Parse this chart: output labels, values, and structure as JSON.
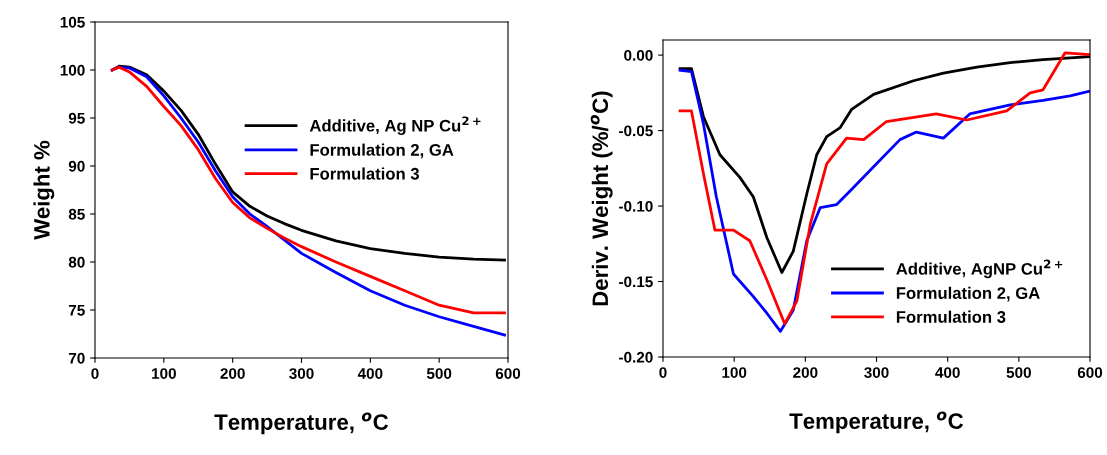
{
  "chart_data": [
    {
      "type": "line",
      "xlabel": "Temperature, $^{o}$C",
      "ylabel": "Weight %",
      "xlim": [
        0,
        600
      ],
      "xticks": [
        0,
        100,
        200,
        300,
        400,
        500,
        600
      ],
      "ylim": [
        70,
        105
      ],
      "yticks": [
        70,
        75,
        80,
        85,
        90,
        95,
        100,
        105
      ],
      "legend": "right",
      "grid": false,
      "series": [
        {
          "name": "Additive, Ag NP Cu$^{2+}$",
          "color": "#000000",
          "x": [
            25,
            35,
            50,
            75,
            100,
            125,
            150,
            175,
            200,
            225,
            250,
            275,
            300,
            350,
            400,
            450,
            500,
            550,
            595
          ],
          "values": [
            100,
            100.4,
            100.3,
            99.5,
            97.8,
            95.8,
            93.3,
            90.2,
            87.3,
            85.8,
            84.8,
            84,
            83.3,
            82.2,
            81.4,
            80.9,
            80.5,
            80.3,
            80.2
          ]
        },
        {
          "name": "Formulation 2, GA",
          "color": "#0000ff",
          "x": [
            25,
            35,
            50,
            75,
            100,
            125,
            150,
            175,
            200,
            225,
            250,
            275,
            300,
            350,
            400,
            450,
            500,
            550,
            595
          ],
          "values": [
            100,
            100.3,
            100.2,
            99.3,
            97.3,
            95,
            92.5,
            89.5,
            86.8,
            85,
            83.7,
            82.3,
            80.9,
            78.9,
            77,
            75.5,
            74.3,
            73.3,
            72.4
          ]
        },
        {
          "name": "Formulation 3",
          "color": "#ff0000",
          "x": [
            25,
            35,
            50,
            75,
            100,
            125,
            150,
            175,
            200,
            225,
            250,
            275,
            300,
            350,
            400,
            450,
            500,
            550,
            595
          ],
          "values": [
            100,
            100.3,
            99.8,
            98.3,
            96.2,
            94.2,
            91.7,
            88.7,
            86.2,
            84.6,
            83.5,
            82.5,
            81.6,
            80,
            78.5,
            77,
            75.5,
            74.7,
            74.7
          ]
        }
      ]
    },
    {
      "type": "line",
      "xlabel": "Temperature, $^{o}$C",
      "ylabel": "Deriv. Weight (%/$^{o}$C)",
      "xlim": [
        0,
        600
      ],
      "xticks": [
        0,
        100,
        200,
        300,
        400,
        500,
        600
      ],
      "ylim": [
        -0.2,
        0.01
      ],
      "yticks": [
        {
          "value": -0.2,
          "label": "-0.20"
        },
        {
          "value": -0.15,
          "label": "-0.15"
        },
        {
          "value": -0.1,
          "label": "-0.10"
        },
        {
          "value": -0.05,
          "label": "-0.05"
        },
        {
          "value": 0,
          "label": "0.00"
        }
      ],
      "legend": "bottom right",
      "grid": false,
      "series": [
        {
          "name": "Additive, AgNP Cu$^{2+}$",
          "color": "#000000",
          "x": [
            24,
            40,
            57,
            80,
            108,
            127,
            146,
            167,
            183,
            202,
            216,
            230,
            249,
            265,
            296,
            352,
            394,
            441,
            488,
            534,
            598
          ],
          "values": [
            -0.009,
            -0.009,
            -0.041,
            -0.066,
            -0.081,
            -0.094,
            -0.121,
            -0.144,
            -0.13,
            -0.092,
            -0.066,
            -0.054,
            -0.048,
            -0.036,
            -0.026,
            -0.017,
            -0.012,
            -0.008,
            -0.005,
            -0.003,
            -0.001
          ]
        },
        {
          "name": "Formulation 2, GA",
          "color": "#0000ff",
          "x": [
            24,
            40,
            57,
            75,
            99,
            127,
            146,
            165,
            183,
            202,
            221,
            244,
            267,
            300,
            333,
            356,
            394,
            431,
            488,
            534,
            572,
            598
          ],
          "values": [
            -0.01,
            -0.011,
            -0.046,
            -0.094,
            -0.145,
            -0.16,
            -0.171,
            -0.183,
            -0.169,
            -0.123,
            -0.101,
            -0.099,
            -0.088,
            -0.072,
            -0.056,
            -0.051,
            -0.055,
            -0.039,
            -0.033,
            -0.03,
            -0.027,
            -0.024
          ]
        },
        {
          "name": "Formulation 3",
          "color": "#ff0000",
          "x": [
            24,
            40,
            57,
            73,
            99,
            122,
            146,
            171,
            188,
            207,
            230,
            258,
            282,
            314,
            384,
            427,
            483,
            516,
            534,
            565,
            598
          ],
          "values": [
            -0.037,
            -0.037,
            -0.079,
            -0.116,
            -0.116,
            -0.123,
            -0.149,
            -0.178,
            -0.163,
            -0.112,
            -0.072,
            -0.055,
            -0.056,
            -0.044,
            -0.039,
            -0.043,
            -0.037,
            -0.025,
            -0.023,
            0.0015,
            0.0004
          ]
        }
      ]
    }
  ]
}
